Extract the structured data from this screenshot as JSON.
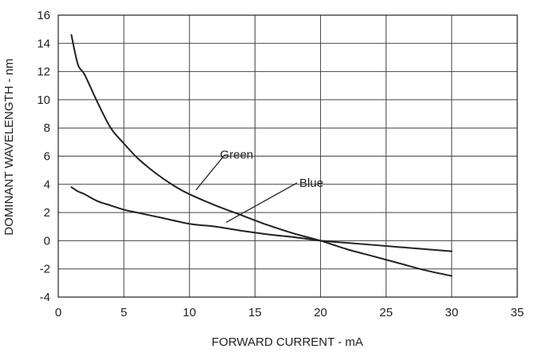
{
  "chart_data": {
    "type": "line",
    "title": "",
    "xlabel": "FORWARD CURRENT - mA",
    "ylabel": "DOMINANT WAVELENGTH - nm",
    "xlim": [
      0,
      35
    ],
    "ylim": [
      -4,
      16
    ],
    "x_ticks": [
      0,
      5,
      10,
      15,
      20,
      25,
      30,
      35
    ],
    "y_ticks": [
      -4,
      -2,
      0,
      2,
      4,
      6,
      8,
      10,
      12,
      14,
      16
    ],
    "grid": true,
    "legend": "none",
    "series": [
      {
        "name": "Green",
        "color": "#222222",
        "x": [
          1,
          1.5,
          2,
          3,
          4,
          5,
          6,
          7,
          8,
          9,
          10,
          12,
          14,
          16,
          18,
          20,
          22,
          24,
          26,
          28,
          30
        ],
        "y": [
          14.6,
          12.5,
          11.8,
          9.8,
          8.0,
          6.9,
          5.9,
          5.1,
          4.4,
          3.8,
          3.3,
          2.5,
          1.8,
          1.1,
          0.5,
          0.0,
          -0.6,
          -1.1,
          -1.6,
          -2.1,
          -2.5
        ]
      },
      {
        "name": "Blue",
        "color": "#222222",
        "x": [
          1,
          1.5,
          2,
          3,
          4,
          5,
          6,
          8,
          10,
          12,
          14,
          16,
          18,
          20,
          22,
          24,
          26,
          28,
          30
        ],
        "y": [
          3.8,
          3.5,
          3.3,
          2.8,
          2.5,
          2.2,
          2.0,
          1.6,
          1.2,
          1.0,
          0.7,
          0.45,
          0.25,
          0.0,
          -0.15,
          -0.3,
          -0.45,
          -0.6,
          -0.75
        ]
      }
    ],
    "annotations": [
      {
        "text": "Green",
        "text_at": [
          13.6,
          6.1
        ],
        "line_from": [
          12.7,
          6.1
        ],
        "line_to": [
          10.5,
          3.6
        ]
      },
      {
        "text": "Blue",
        "text_at": [
          19.3,
          4.1
        ],
        "line_from": [
          18.2,
          4.1
        ],
        "line_to": [
          12.8,
          1.3
        ]
      }
    ]
  }
}
